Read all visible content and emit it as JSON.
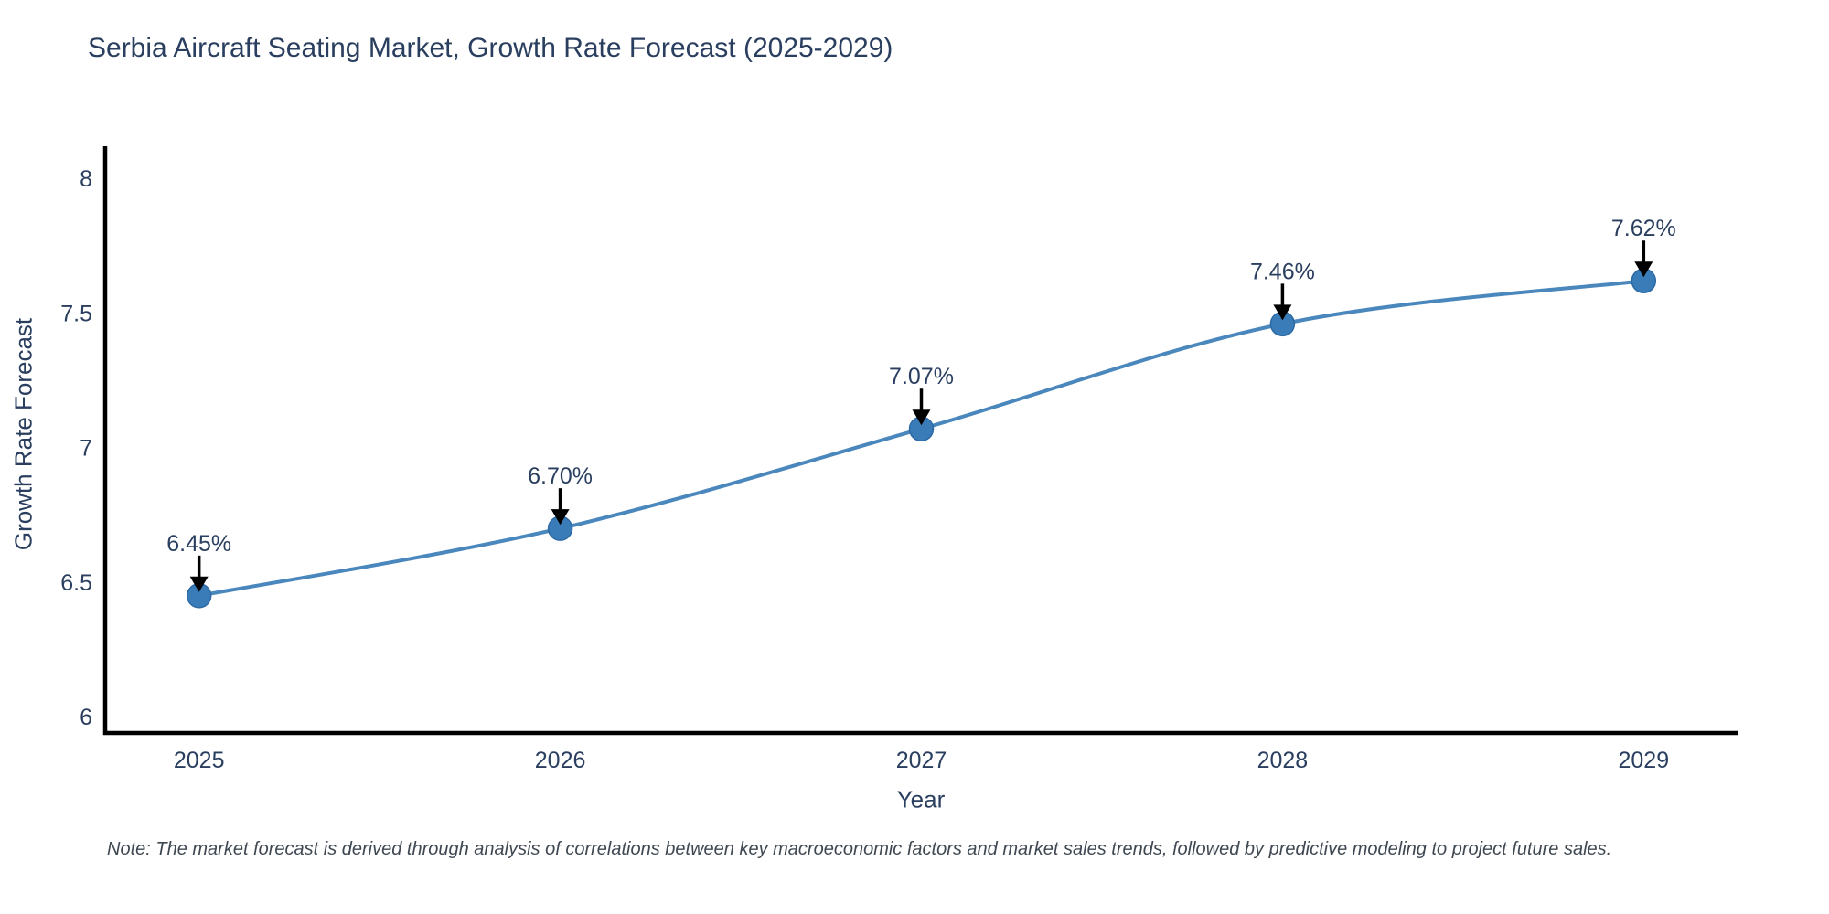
{
  "note": "Note: The market forecast is derived through analysis of correlations between key macroeconomic factors and market sales trends, followed by predictive modeling to project future sales.",
  "chart_data": {
    "type": "line",
    "title": "Serbia Aircraft Seating Market, Growth Rate Forecast (2025-2029)",
    "xlabel": "Year",
    "ylabel": "Growth Rate Forecast",
    "x": [
      2025,
      2026,
      2027,
      2028,
      2029
    ],
    "series": [
      {
        "name": "Growth Rate Forecast",
        "values": [
          6.45,
          6.7,
          7.07,
          7.46,
          7.62
        ],
        "point_labels": [
          "6.45%",
          "6.70%",
          "7.07%",
          "7.46%",
          "7.62%"
        ]
      }
    ],
    "xtick_labels": [
      "2025",
      "2026",
      "2027",
      "2028",
      "2029"
    ],
    "ytick_values": [
      6,
      6.5,
      7,
      7.5,
      8
    ],
    "ytick_labels": [
      "6",
      "6.5",
      "7",
      "7.5",
      "8"
    ],
    "xlim": [
      2024.74,
      2029.26
    ],
    "ylim": [
      5.94,
      8.12
    ],
    "grid": false,
    "legend_position": "none",
    "line_shape": "spline",
    "annotations_have_arrows": true,
    "colors": {
      "line": "#4a87bd",
      "marker_fill": "#3a7cb8",
      "marker_edge": "#2d6aa5",
      "arrow": "#000000",
      "axis": "#000000",
      "text": "#2a3f5f",
      "note_text": "#3f4852",
      "background": "#ffffff"
    }
  }
}
